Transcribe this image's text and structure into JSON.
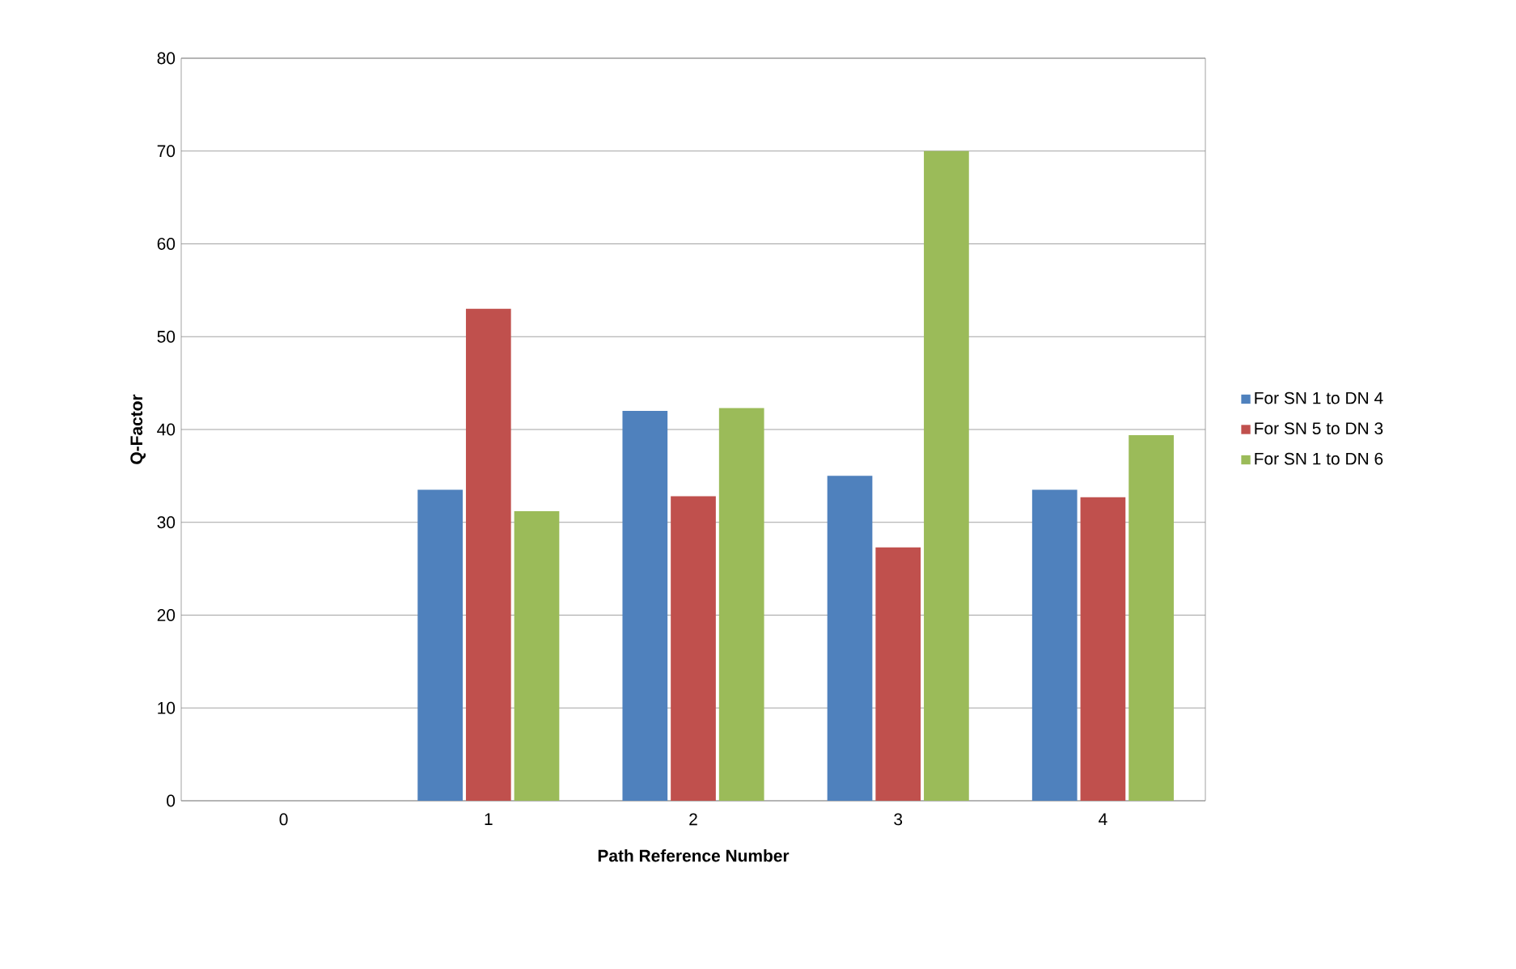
{
  "chart_data": {
    "type": "bar",
    "xlabel": "Path Reference Number",
    "ylabel": "Q-Factor",
    "categories": [
      "0",
      "1",
      "2",
      "3",
      "4"
    ],
    "series": [
      {
        "name": "For SN 1 to DN 4",
        "color": "#4f81bd",
        "values": [
          0,
          33.5,
          42,
          35,
          33.5
        ]
      },
      {
        "name": "For SN 5 to DN 3",
        "color": "#c0504d",
        "values": [
          0,
          53,
          32.8,
          27.3,
          32.7
        ]
      },
      {
        "name": "For SN 1 to DN 6",
        "color": "#9bbb59",
        "values": [
          0,
          31.2,
          42.3,
          70,
          39.4
        ]
      }
    ],
    "ylim": [
      0,
      80
    ],
    "yticks": [
      0,
      10,
      20,
      30,
      40,
      50,
      60,
      70,
      80
    ],
    "grid": "y",
    "legend": "right"
  }
}
